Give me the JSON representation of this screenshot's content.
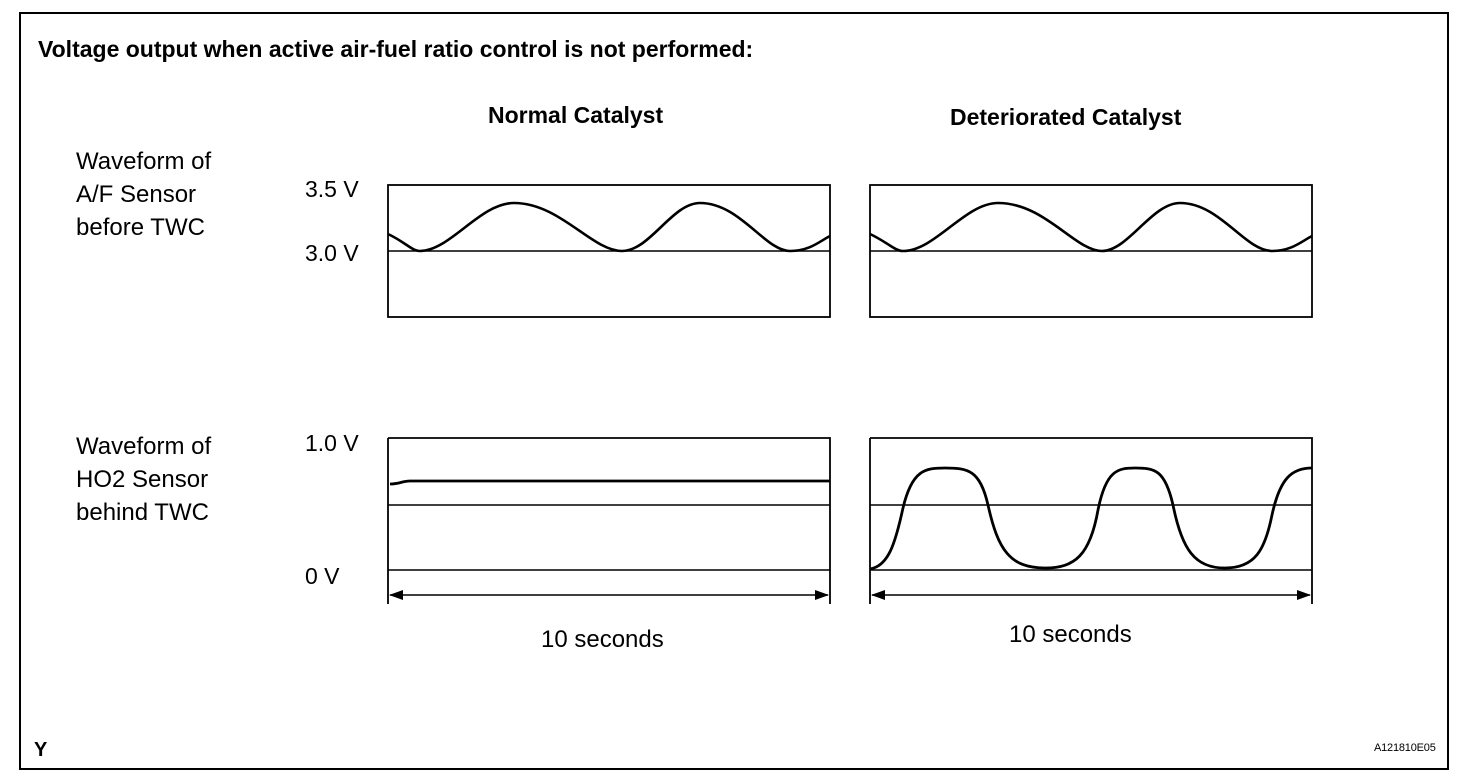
{
  "title": "Voltage output when active air-fuel ratio control is not performed:",
  "columns": {
    "normal": "Normal Catalyst",
    "deteriorated": "Deteriorated Catalyst"
  },
  "rows": {
    "af": {
      "line1": "Waveform of",
      "line2": "A/F Sensor",
      "line3": "before TWC"
    },
    "ho2": {
      "line1": "Waveform of",
      "line2": "HO2 Sensor",
      "line3": "behind TWC"
    }
  },
  "ticks": {
    "af_top": "3.5 V",
    "af_ref": "3.0 V",
    "ho2_top": "1.0 V",
    "ho2_zero": "0 V"
  },
  "durations": {
    "normal": "10 seconds",
    "deteriorated": "10 seconds"
  },
  "corner_mark": "Y",
  "figure_code": "A121810E05"
}
